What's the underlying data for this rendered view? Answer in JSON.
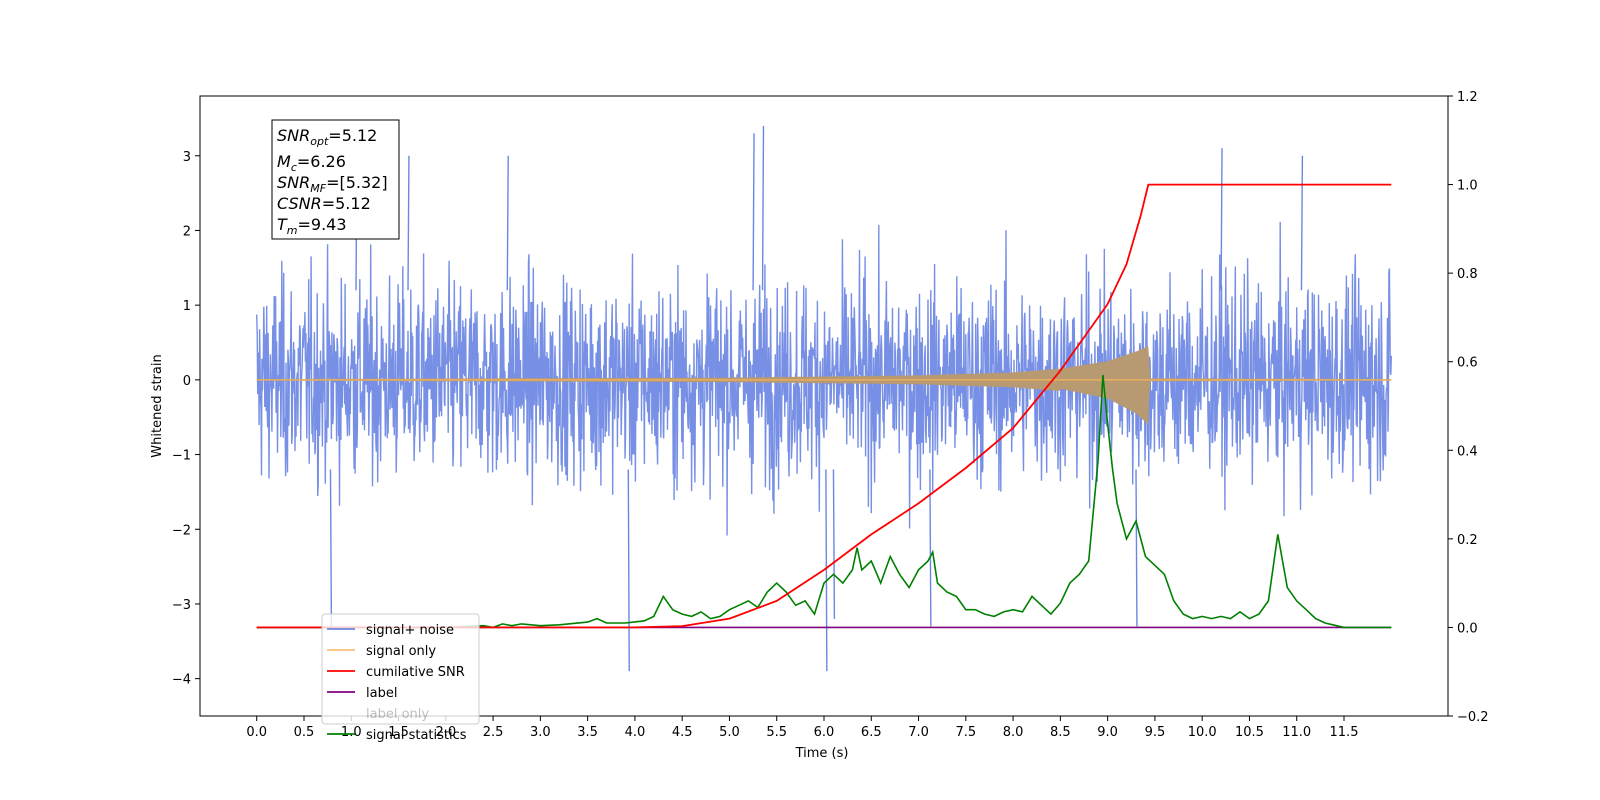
{
  "chart_data": {
    "type": "line",
    "xlabel": "Time (s)",
    "ylabel_left": "Whitened strain",
    "xlim": [
      -0.6,
      12.6
    ],
    "ylim_left": [
      -4.5,
      3.8
    ],
    "ylim_right": [
      -0.2,
      1.2
    ],
    "x_ticks": [
      "0.0",
      "0.5",
      "1.0",
      "1.5",
      "2.0",
      "2.5",
      "3.0",
      "3.5",
      "4.0",
      "4.5",
      "5.0",
      "5.5",
      "6.0",
      "6.5",
      "7.0",
      "7.5",
      "8.0",
      "8.5",
      "9.0",
      "9.5",
      "10.0",
      "10.5",
      "11.0",
      "11.5"
    ],
    "y_ticks_left": [
      "3",
      "2",
      "1",
      "0",
      "−1",
      "−2",
      "−3",
      "−4"
    ],
    "y_ticks_right": [
      "1.2",
      "1.0",
      "0.8",
      "0.6",
      "0.4",
      "0.2",
      "0.0",
      "−0.2"
    ],
    "grid": false,
    "legend_placement": "lower-left",
    "series": [
      {
        "name": "signal+ noise",
        "axis": "left",
        "color": "#6b87e3",
        "description": "dense noisy time series on [0, 12] with amplitude roughly ±1.5 and spikes to about +3.4 and -3.9",
        "x_range": [
          0,
          12
        ],
        "typical_amplitude": 1.5,
        "spikes": [
          [
            0.78,
            -3.3
          ],
          [
            1.05,
            3.1
          ],
          [
            1.6,
            3.0
          ],
          [
            2.65,
            3.0
          ],
          [
            3.93,
            -3.9
          ],
          [
            5.35,
            3.4
          ],
          [
            5.25,
            3.3
          ],
          [
            6.02,
            -3.9
          ],
          [
            6.1,
            -3.2
          ],
          [
            7.12,
            -3.3
          ],
          [
            9.3,
            -3.3
          ],
          [
            10.2,
            3.1
          ],
          [
            11.05,
            3.0
          ]
        ]
      },
      {
        "name": "signal only",
        "axis": "left",
        "color": "#f5b256",
        "description": "chirp whose envelope grows toward merger at 9.43 s",
        "envelope": [
          [
            0,
            0.01
          ],
          [
            5.0,
            0.03
          ],
          [
            7.0,
            0.06
          ],
          [
            8.0,
            0.1
          ],
          [
            8.5,
            0.15
          ],
          [
            9.0,
            0.25
          ],
          [
            9.3,
            0.38
          ],
          [
            9.43,
            0.45
          ],
          [
            9.45,
            0.02
          ],
          [
            12.0,
            0.01
          ]
        ],
        "envelope_lower": [
          [
            8.5,
            -0.12
          ],
          [
            9.0,
            -0.25
          ],
          [
            9.3,
            -0.45
          ],
          [
            9.43,
            -0.6
          ]
        ]
      },
      {
        "name": "cumilative SNR",
        "axis": "right",
        "color": "#ff0000",
        "x": [
          0.0,
          4.0,
          4.5,
          5.0,
          5.5,
          6.0,
          6.5,
          7.0,
          7.5,
          8.0,
          8.5,
          9.0,
          9.2,
          9.35,
          9.43,
          12.0
        ],
        "y": [
          0.0,
          0.0,
          0.003,
          0.02,
          0.06,
          0.13,
          0.21,
          0.28,
          0.36,
          0.45,
          0.58,
          0.73,
          0.82,
          0.93,
          1.0,
          1.0
        ]
      },
      {
        "name": "label",
        "axis": "right",
        "color": "#800080",
        "x": [
          0.0,
          12.0
        ],
        "y": [
          0.0,
          0.0
        ]
      },
      {
        "name": "label only",
        "axis": "right",
        "color": "#800080",
        "x": [],
        "y": []
      },
      {
        "name": "signal statistics",
        "axis": "right",
        "color": "#008000",
        "x": [
          0.0,
          2.0,
          2.4,
          2.5,
          2.6,
          2.7,
          2.8,
          3.0,
          3.2,
          3.5,
          3.6,
          3.7,
          3.9,
          4.1,
          4.2,
          4.3,
          4.4,
          4.5,
          4.6,
          4.7,
          4.8,
          4.9,
          5.0,
          5.1,
          5.2,
          5.3,
          5.4,
          5.5,
          5.6,
          5.7,
          5.8,
          5.9,
          6.0,
          6.1,
          6.2,
          6.3,
          6.35,
          6.4,
          6.5,
          6.6,
          6.7,
          6.8,
          6.9,
          7.0,
          7.1,
          7.15,
          7.2,
          7.3,
          7.4,
          7.5,
          7.6,
          7.7,
          7.8,
          7.9,
          8.0,
          8.1,
          8.2,
          8.3,
          8.4,
          8.5,
          8.6,
          8.7,
          8.8,
          8.9,
          8.95,
          9.0,
          9.05,
          9.1,
          9.2,
          9.3,
          9.4,
          9.5,
          9.6,
          9.7,
          9.8,
          9.9,
          10.0,
          10.1,
          10.2,
          10.3,
          10.4,
          10.5,
          10.6,
          10.7,
          10.8,
          10.9,
          11.0,
          11.1,
          11.2,
          11.3,
          11.4,
          11.5,
          12.0
        ],
        "y": [
          0.0,
          0.0,
          0.004,
          0.0,
          0.008,
          0.004,
          0.008,
          0.004,
          0.006,
          0.012,
          0.02,
          0.01,
          0.01,
          0.015,
          0.025,
          0.07,
          0.04,
          0.03,
          0.025,
          0.035,
          0.02,
          0.025,
          0.04,
          0.05,
          0.06,
          0.045,
          0.08,
          0.1,
          0.08,
          0.05,
          0.06,
          0.03,
          0.1,
          0.12,
          0.1,
          0.13,
          0.18,
          0.13,
          0.15,
          0.1,
          0.16,
          0.12,
          0.09,
          0.13,
          0.15,
          0.17,
          0.1,
          0.08,
          0.07,
          0.04,
          0.04,
          0.03,
          0.025,
          0.035,
          0.04,
          0.035,
          0.07,
          0.05,
          0.03,
          0.055,
          0.1,
          0.12,
          0.15,
          0.38,
          0.57,
          0.46,
          0.36,
          0.28,
          0.2,
          0.24,
          0.16,
          0.14,
          0.12,
          0.06,
          0.03,
          0.02,
          0.025,
          0.02,
          0.025,
          0.02,
          0.035,
          0.02,
          0.03,
          0.06,
          0.21,
          0.09,
          0.06,
          0.04,
          0.02,
          0.01,
          0.005,
          0.0,
          0.0
        ]
      }
    ],
    "info_box": {
      "snr_opt_label": "SNR",
      "snr_opt_sub": "opt",
      "snr_opt_value": "=5.12",
      "mc_label": "M",
      "mc_sub": "c",
      "mc_value": "=6.26",
      "snr_mf_label": "SNR",
      "snr_mf_sub": "MF",
      "snr_mf_value": "=[5.32]",
      "csnr_label": "CSNR",
      "csnr_value": "=5.12",
      "tm_label": "T",
      "tm_sub": "m",
      "tm_value": "=9.43"
    }
  }
}
